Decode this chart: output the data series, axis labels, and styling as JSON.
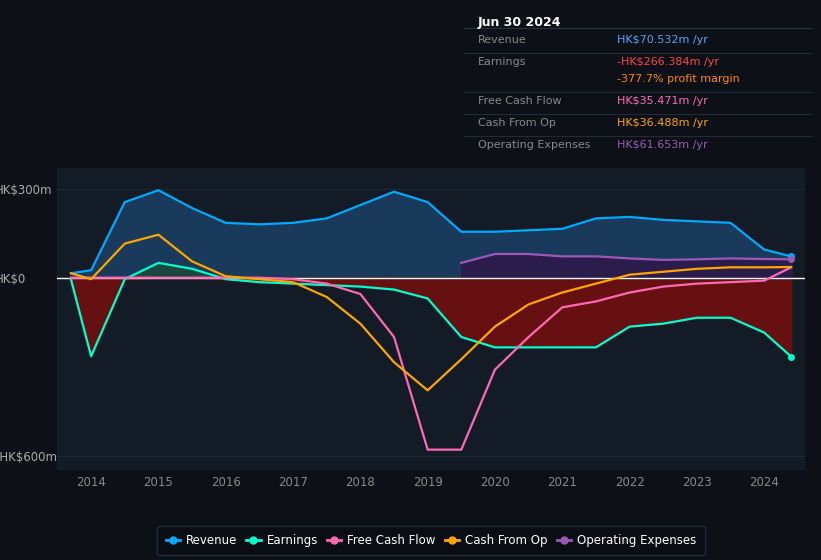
{
  "bg_color": "#0d1117",
  "plot_bg_color": "#131b27",
  "grid_color": "#1e2a38",
  "zero_line_color": "#ffffff",
  "title": "Jun 30 2024",
  "info_rows": [
    {
      "label": "Revenue",
      "value": "HK$70.532m /yr",
      "value_color": "#4da6ff",
      "label_color": "#888888"
    },
    {
      "label": "Earnings",
      "value": "-HK$266.384m /yr",
      "value_color": "#ff4444",
      "label_color": "#888888"
    },
    {
      "label": "",
      "value": "-377.7% profit margin",
      "value_color": "#ff8800",
      "label_color": "#888888"
    },
    {
      "label": "Free Cash Flow",
      "value": "HK$35.471m /yr",
      "value_color": "#ff69b4",
      "label_color": "#888888"
    },
    {
      "label": "Cash From Op",
      "value": "HK$36.488m /yr",
      "value_color": "#ffa500",
      "label_color": "#888888"
    },
    {
      "label": "Operating Expenses",
      "value": "HK$61.653m /yr",
      "value_color": "#9b59b6",
      "label_color": "#888888"
    }
  ],
  "years": [
    2013.7,
    2014.0,
    2014.5,
    2015.0,
    2015.5,
    2016.0,
    2016.5,
    2017.0,
    2017.5,
    2018.0,
    2018.5,
    2019.0,
    2019.5,
    2020.0,
    2020.5,
    2021.0,
    2021.5,
    2022.0,
    2022.5,
    2023.0,
    2023.5,
    2024.0,
    2024.4
  ],
  "revenue": [
    15,
    25,
    255,
    295,
    235,
    185,
    180,
    185,
    200,
    245,
    290,
    255,
    155,
    155,
    160,
    165,
    200,
    205,
    195,
    190,
    185,
    95,
    72
  ],
  "earnings": [
    -5,
    -265,
    -5,
    50,
    30,
    -5,
    -15,
    -20,
    -25,
    -30,
    -40,
    -70,
    -200,
    -235,
    -235,
    -235,
    -235,
    -165,
    -155,
    -135,
    -135,
    -185,
    -266
  ],
  "free_cash_flow": [
    0,
    0,
    0,
    0,
    0,
    0,
    0,
    -5,
    -20,
    -55,
    -200,
    -580,
    -580,
    -310,
    -200,
    -100,
    -80,
    -50,
    -30,
    -20,
    -15,
    -10,
    35
  ],
  "cash_from_op": [
    15,
    -5,
    115,
    145,
    55,
    5,
    -5,
    -15,
    -65,
    -155,
    -285,
    -380,
    -275,
    -165,
    -90,
    -50,
    -20,
    10,
    20,
    30,
    35,
    35,
    36
  ],
  "op_expenses": [
    0,
    0,
    0,
    0,
    0,
    0,
    0,
    0,
    0,
    0,
    0,
    0,
    50,
    80,
    80,
    72,
    72,
    65,
    60,
    62,
    65,
    63,
    62
  ],
  "ylim": [
    -650,
    370
  ],
  "yticks": [
    -600,
    0,
    300
  ],
  "ytick_labels": [
    "-HK$600m",
    "HK$0",
    "HK$300m"
  ],
  "xlim": [
    2013.5,
    2024.6
  ],
  "xticks": [
    2014,
    2015,
    2016,
    2017,
    2018,
    2019,
    2020,
    2021,
    2022,
    2023,
    2024
  ],
  "revenue_color": "#00aaff",
  "revenue_fill": "#1a3a5c",
  "earnings_color": "#00ffcc",
  "earnings_fill_pos": "#1a4a3a",
  "earnings_fill_neg": "#6b1010",
  "free_cash_flow_color": "#ff69b4",
  "cash_from_op_color": "#ffa500",
  "op_expenses_color": "#9b59b6",
  "op_expenses_fill": "#2e1a4a",
  "legend_items": [
    {
      "label": "Revenue",
      "color": "#00aaff"
    },
    {
      "label": "Earnings",
      "color": "#00ffcc"
    },
    {
      "label": "Free Cash Flow",
      "color": "#ff69b4"
    },
    {
      "label": "Cash From Op",
      "color": "#ffa500"
    },
    {
      "label": "Operating Expenses",
      "color": "#9b59b6"
    }
  ]
}
